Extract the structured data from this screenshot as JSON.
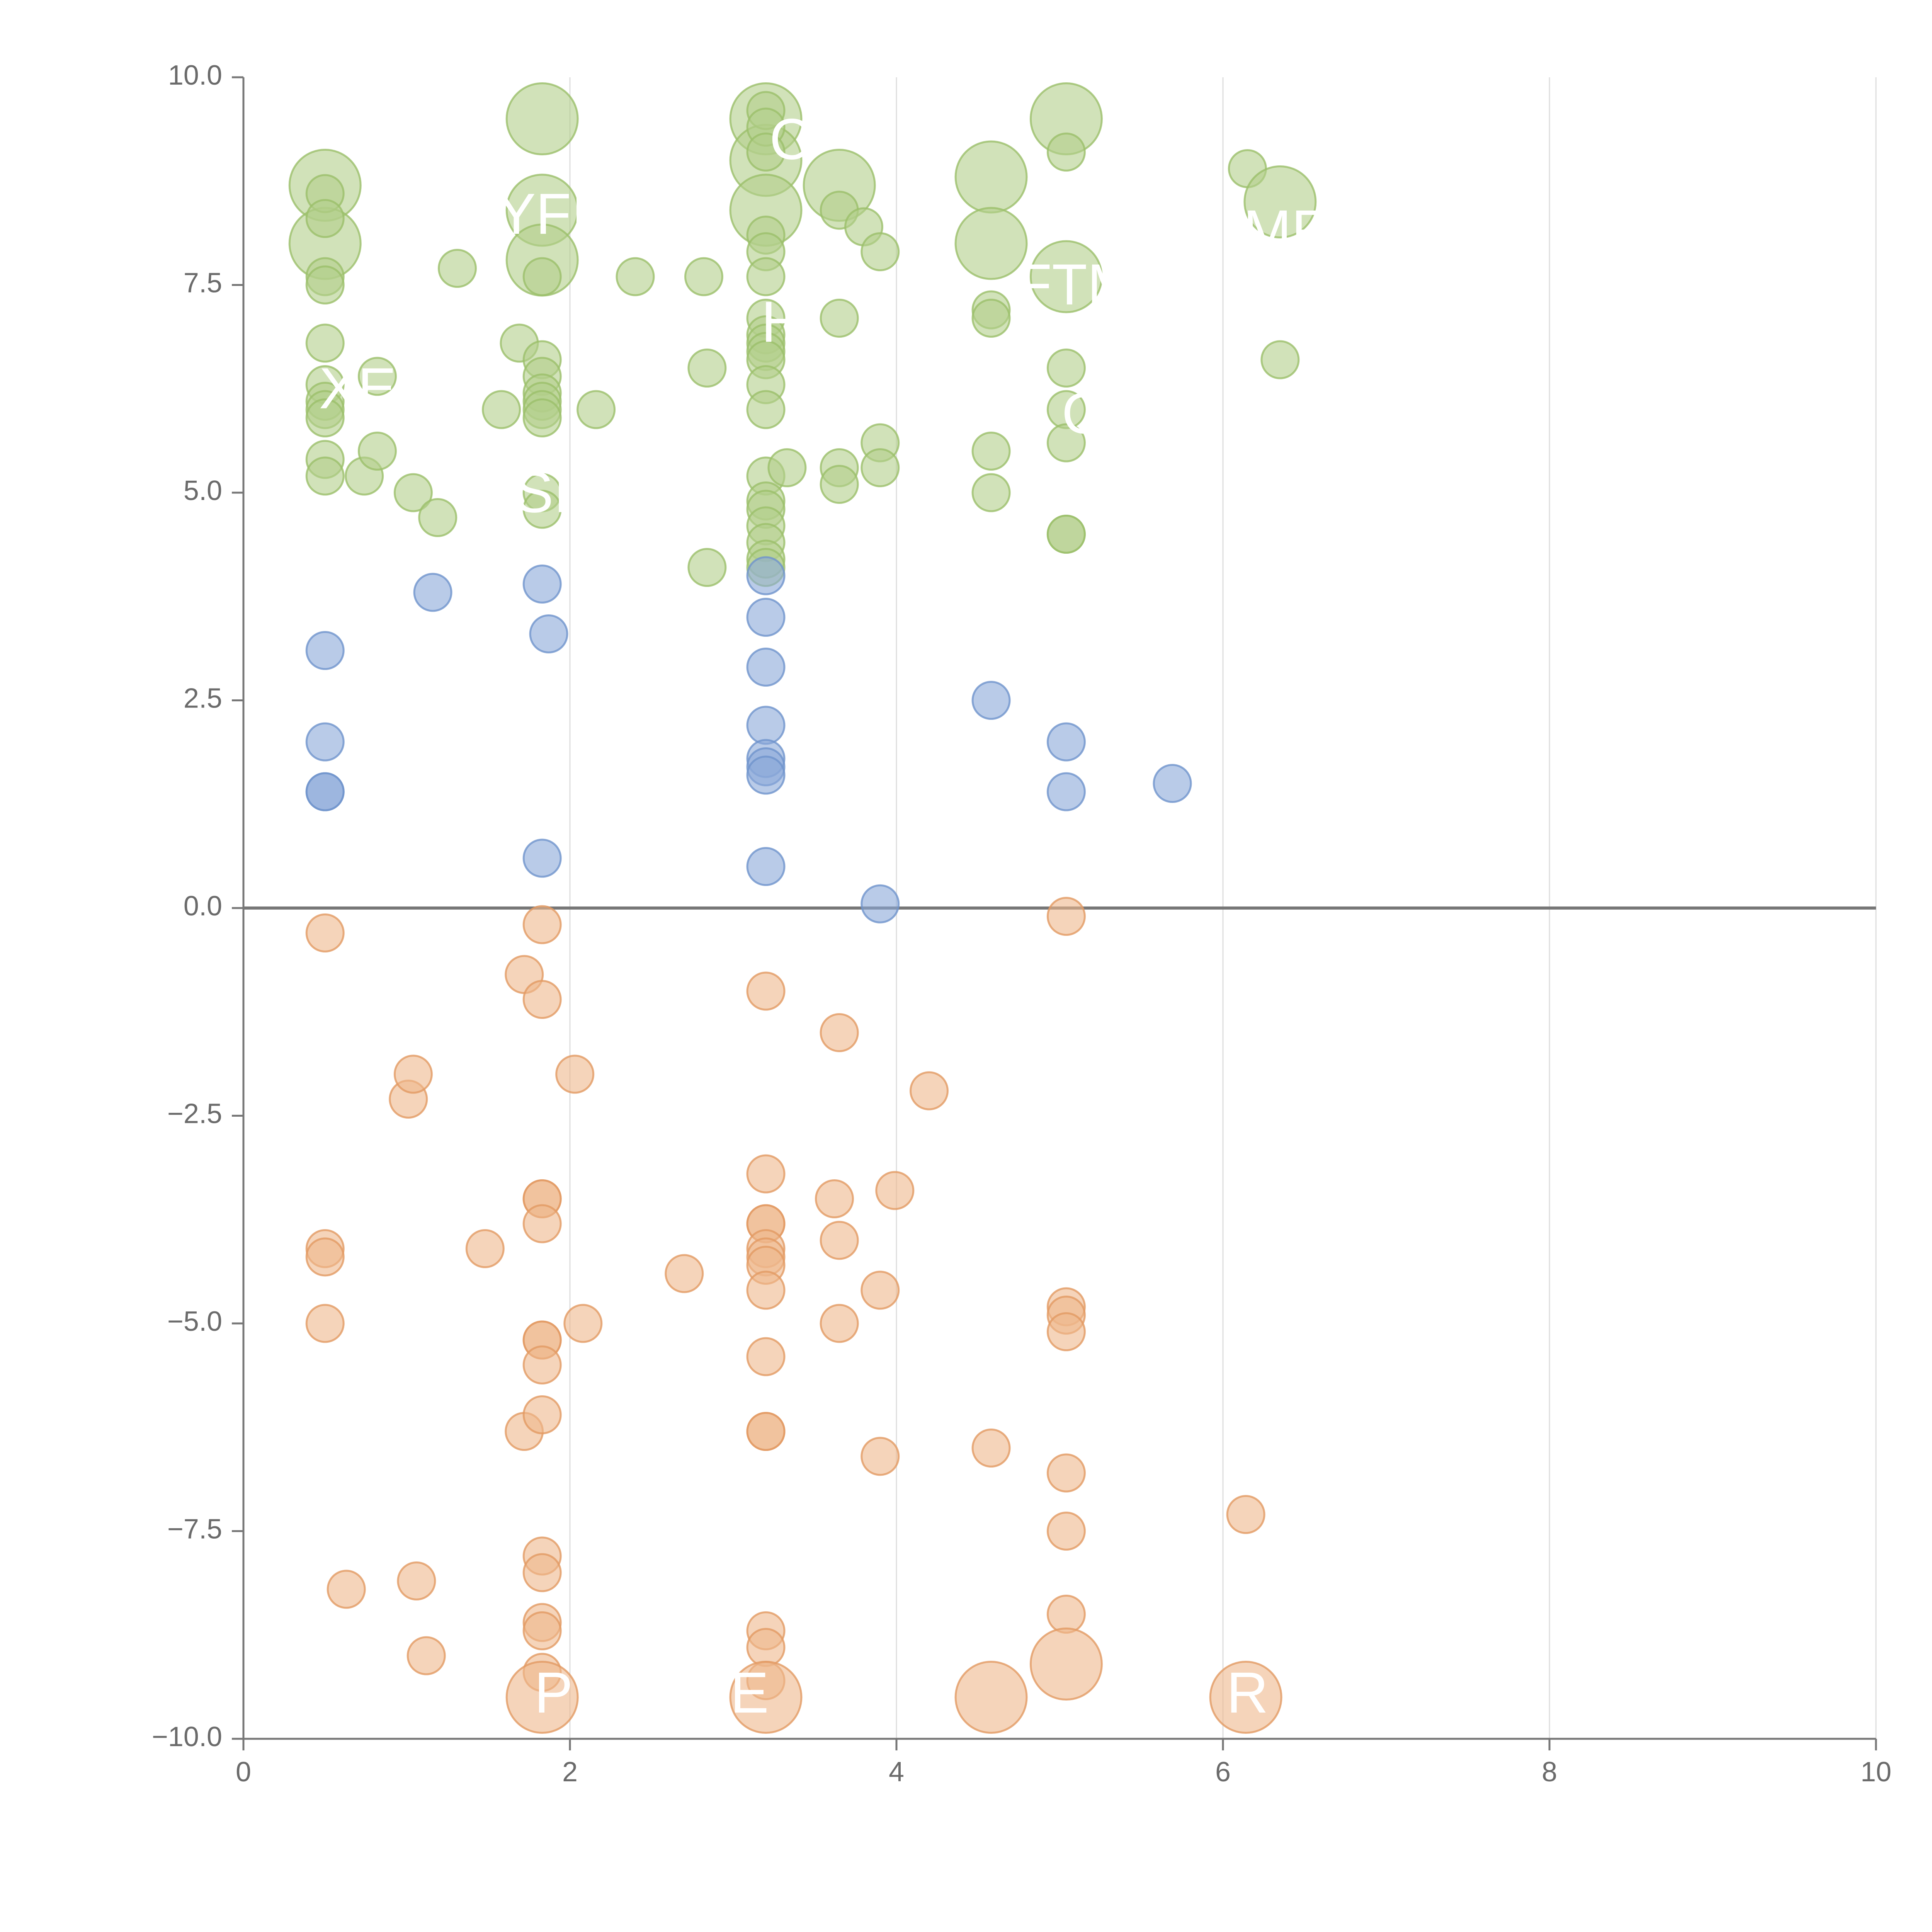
{
  "chart_data": {
    "type": "scatter",
    "title": "",
    "xlabel": "",
    "ylabel": "",
    "xlim": [
      0,
      10
    ],
    "ylim": [
      -10,
      10
    ],
    "x_ticks": [
      0,
      2,
      4,
      6,
      8,
      10
    ],
    "x_tick_labels": [
      "0",
      "2",
      "4",
      "6",
      "8",
      "10"
    ],
    "y_ticks": [
      10,
      7.5,
      5,
      2.5,
      0,
      -2.5,
      -5,
      -7.5,
      -10
    ],
    "y_tick_labels": [
      "10.0",
      "7.5",
      "5.0",
      "2.5",
      "0.0",
      "−2.5",
      "−5.0",
      "−7.5",
      "−10.0"
    ],
    "grid": "vertical",
    "zero_line": true,
    "colors": {
      "high": "#b3cf8a",
      "mid": "#8ba9d8",
      "low": "#efb78c",
      "high_stroke": "#9bbf6a",
      "mid_stroke": "#6f93cc",
      "low_stroke": "#e29a63",
      "axis": "#777777",
      "grid": "#dddddd"
    },
    "series": [
      {
        "name": "high",
        "points": [
          [
            0.5,
            8.7,
            2
          ],
          [
            0.5,
            8.0,
            2
          ],
          [
            0.5,
            8.6,
            0
          ],
          [
            0.5,
            8.3,
            0
          ],
          [
            0.5,
            7.6,
            0
          ],
          [
            0.5,
            7.5,
            0
          ],
          [
            0.5,
            6.8,
            0
          ],
          [
            0.5,
            6.3,
            0
          ],
          [
            0.5,
            6.1,
            0
          ],
          [
            0.5,
            6.0,
            0
          ],
          [
            0.5,
            5.9,
            0
          ],
          [
            0.5,
            5.4,
            0
          ],
          [
            0.5,
            5.2,
            0
          ],
          [
            0.74,
            5.2,
            0
          ],
          [
            0.82,
            6.4,
            0
          ],
          [
            0.82,
            5.5,
            0
          ],
          [
            1.04,
            5.0,
            0
          ],
          [
            1.19,
            4.7,
            0
          ],
          [
            1.31,
            7.7,
            0
          ],
          [
            1.58,
            6.0,
            0
          ],
          [
            1.69,
            6.8,
            0
          ],
          [
            1.83,
            9.5,
            2
          ],
          [
            1.83,
            8.4,
            2
          ],
          [
            1.83,
            7.8,
            2
          ],
          [
            1.83,
            7.6,
            0
          ],
          [
            1.83,
            6.6,
            0
          ],
          [
            1.83,
            6.4,
            0
          ],
          [
            1.83,
            6.2,
            0
          ],
          [
            1.83,
            6.1,
            0
          ],
          [
            1.83,
            6.0,
            0
          ],
          [
            1.83,
            5.9,
            0
          ],
          [
            1.83,
            5.0,
            0
          ],
          [
            1.83,
            4.8,
            0
          ],
          [
            2.16,
            6.0,
            0
          ],
          [
            2.4,
            7.6,
            0
          ],
          [
            2.82,
            7.6,
            0
          ],
          [
            2.84,
            6.5,
            0
          ],
          [
            2.84,
            4.1,
            0
          ],
          [
            3.2,
            9.5,
            2
          ],
          [
            3.2,
            9.0,
            2
          ],
          [
            3.2,
            8.4,
            2
          ],
          [
            3.2,
            9.6,
            0
          ],
          [
            3.2,
            9.4,
            0
          ],
          [
            3.2,
            9.1,
            0
          ],
          [
            3.2,
            8.1,
            0
          ],
          [
            3.2,
            7.9,
            0
          ],
          [
            3.2,
            7.6,
            0
          ],
          [
            3.2,
            7.1,
            0
          ],
          [
            3.2,
            6.9,
            0
          ],
          [
            3.2,
            6.8,
            0
          ],
          [
            3.2,
            6.7,
            0
          ],
          [
            3.2,
            6.6,
            0
          ],
          [
            3.2,
            6.3,
            0
          ],
          [
            3.2,
            6.0,
            0
          ],
          [
            3.2,
            5.2,
            0
          ],
          [
            3.2,
            4.9,
            0
          ],
          [
            3.2,
            4.8,
            0
          ],
          [
            3.2,
            4.6,
            0
          ],
          [
            3.2,
            4.4,
            0
          ],
          [
            3.2,
            4.2,
            0
          ],
          [
            3.2,
            4.1,
            0
          ],
          [
            3.33,
            5.3,
            0
          ],
          [
            3.65,
            8.7,
            2
          ],
          [
            3.65,
            8.4,
            0
          ],
          [
            3.65,
            7.1,
            0
          ],
          [
            3.65,
            5.3,
            0
          ],
          [
            3.65,
            5.1,
            0
          ],
          [
            3.8,
            8.2,
            0
          ],
          [
            3.9,
            7.9,
            0
          ],
          [
            3.9,
            5.6,
            0
          ],
          [
            3.9,
            5.3,
            0
          ],
          [
            4.58,
            8.8,
            2
          ],
          [
            4.58,
            8.0,
            2
          ],
          [
            4.58,
            7.2,
            0
          ],
          [
            4.58,
            7.1,
            0
          ],
          [
            4.58,
            5.5,
            0
          ],
          [
            4.58,
            5.0,
            0
          ],
          [
            5.04,
            9.5,
            2
          ],
          [
            5.04,
            7.6,
            2
          ],
          [
            5.04,
            9.1,
            0
          ],
          [
            5.04,
            6.5,
            0
          ],
          [
            5.04,
            6.0,
            0
          ],
          [
            5.04,
            5.6,
            0
          ],
          [
            5.04,
            4.5,
            0
          ],
          [
            5.04,
            4.5,
            0
          ],
          [
            6.15,
            8.9,
            0
          ],
          [
            6.35,
            8.5,
            2
          ],
          [
            6.35,
            6.6,
            0
          ]
        ]
      },
      {
        "name": "mid",
        "points": [
          [
            0.5,
            3.1,
            0
          ],
          [
            0.5,
            2.0,
            0
          ],
          [
            0.5,
            1.4,
            0
          ],
          [
            0.5,
            1.4,
            0
          ],
          [
            1.16,
            3.8,
            0
          ],
          [
            1.83,
            3.9,
            0
          ],
          [
            1.87,
            3.3,
            0
          ],
          [
            1.83,
            0.6,
            0
          ],
          [
            3.2,
            4.0,
            0
          ],
          [
            3.2,
            3.5,
            0
          ],
          [
            3.2,
            2.9,
            0
          ],
          [
            3.2,
            2.2,
            0
          ],
          [
            3.2,
            1.8,
            0
          ],
          [
            3.2,
            1.7,
            0
          ],
          [
            3.2,
            1.6,
            0
          ],
          [
            3.2,
            0.5,
            0
          ],
          [
            3.9,
            0.05,
            0
          ],
          [
            4.58,
            2.5,
            0
          ],
          [
            5.04,
            2.0,
            0
          ],
          [
            5.04,
            1.4,
            0
          ],
          [
            5.69,
            1.5,
            0
          ]
        ]
      },
      {
        "name": "low",
        "points": [
          [
            0.5,
            -0.3,
            0
          ],
          [
            0.5,
            -4.1,
            0
          ],
          [
            0.5,
            -4.2,
            0
          ],
          [
            0.5,
            -5.0,
            0
          ],
          [
            0.63,
            -8.2,
            0
          ],
          [
            1.01,
            -2.3,
            0
          ],
          [
            1.04,
            -2.0,
            0
          ],
          [
            1.06,
            -8.1,
            0
          ],
          [
            1.12,
            -9.0,
            0
          ],
          [
            1.48,
            -4.1,
            0
          ],
          [
            1.72,
            -0.8,
            0
          ],
          [
            1.72,
            -6.3,
            0
          ],
          [
            1.83,
            -0.2,
            0
          ],
          [
            1.83,
            -1.1,
            0
          ],
          [
            1.83,
            -3.5,
            0
          ],
          [
            1.83,
            -3.5,
            0
          ],
          [
            1.83,
            -3.8,
            0
          ],
          [
            1.83,
            -5.2,
            0
          ],
          [
            1.83,
            -5.2,
            0
          ],
          [
            1.83,
            -5.5,
            0
          ],
          [
            1.83,
            -6.1,
            0
          ],
          [
            1.83,
            -7.8,
            0
          ],
          [
            1.83,
            -8.0,
            0
          ],
          [
            1.83,
            -8.6,
            0
          ],
          [
            1.83,
            -8.7,
            0
          ],
          [
            1.83,
            -9.2,
            0
          ],
          [
            1.83,
            -9.5,
            2
          ],
          [
            2.03,
            -2.0,
            0
          ],
          [
            2.08,
            -5.0,
            0
          ],
          [
            2.7,
            -4.4,
            0
          ],
          [
            3.2,
            -1.0,
            0
          ],
          [
            3.2,
            -3.2,
            0
          ],
          [
            3.2,
            -3.8,
            0
          ],
          [
            3.2,
            -3.8,
            0
          ],
          [
            3.2,
            -4.1,
            0
          ],
          [
            3.2,
            -4.2,
            0
          ],
          [
            3.2,
            -4.3,
            0
          ],
          [
            3.2,
            -4.6,
            0
          ],
          [
            3.2,
            -5.4,
            0
          ],
          [
            3.2,
            -6.3,
            0
          ],
          [
            3.2,
            -6.3,
            0
          ],
          [
            3.2,
            -8.7,
            0
          ],
          [
            3.2,
            -8.9,
            0
          ],
          [
            3.2,
            -9.3,
            0
          ],
          [
            3.2,
            -9.5,
            2
          ],
          [
            3.62,
            -3.5,
            0
          ],
          [
            3.65,
            -1.5,
            0
          ],
          [
            3.65,
            -4.0,
            0
          ],
          [
            3.65,
            -5.0,
            0
          ],
          [
            3.9,
            -4.6,
            0
          ],
          [
            3.9,
            -6.6,
            0
          ],
          [
            3.99,
            -3.4,
            0
          ],
          [
            4.2,
            -2.2,
            0
          ],
          [
            4.58,
            -6.5,
            0
          ],
          [
            4.58,
            -9.5,
            2
          ],
          [
            5.04,
            -0.1,
            0
          ],
          [
            5.04,
            -4.8,
            0
          ],
          [
            5.04,
            -4.9,
            0
          ],
          [
            5.04,
            -5.1,
            0
          ],
          [
            5.04,
            -6.8,
            0
          ],
          [
            5.04,
            -7.5,
            0
          ],
          [
            5.04,
            -8.5,
            0
          ],
          [
            5.04,
            -9.1,
            2
          ],
          [
            6.14,
            -7.3,
            0
          ],
          [
            6.14,
            -9.5,
            2
          ]
        ]
      }
    ],
    "annotations": [
      {
        "text": "C",
        "x": 3.35,
        "y": 9.2
      },
      {
        "text": "YFI",
        "x": 1.83,
        "y": 8.3
      },
      {
        "text": "FTM",
        "x": 5.1,
        "y": 7.45
      },
      {
        "text": "H",
        "x": 3.3,
        "y": 7.0
      },
      {
        "text": "MR",
        "x": 6.4,
        "y": 8.1
      },
      {
        "text": "XE",
        "x": 0.7,
        "y": 6.2
      },
      {
        "text": "G",
        "x": 5.15,
        "y": 5.9
      },
      {
        "text": "SI",
        "x": 1.83,
        "y": 4.95
      },
      {
        "text": "P",
        "x": 1.9,
        "y": -9.5
      },
      {
        "text": "E",
        "x": 3.1,
        "y": -9.5
      },
      {
        "text": "R",
        "x": 6.15,
        "y": -9.5
      }
    ]
  }
}
